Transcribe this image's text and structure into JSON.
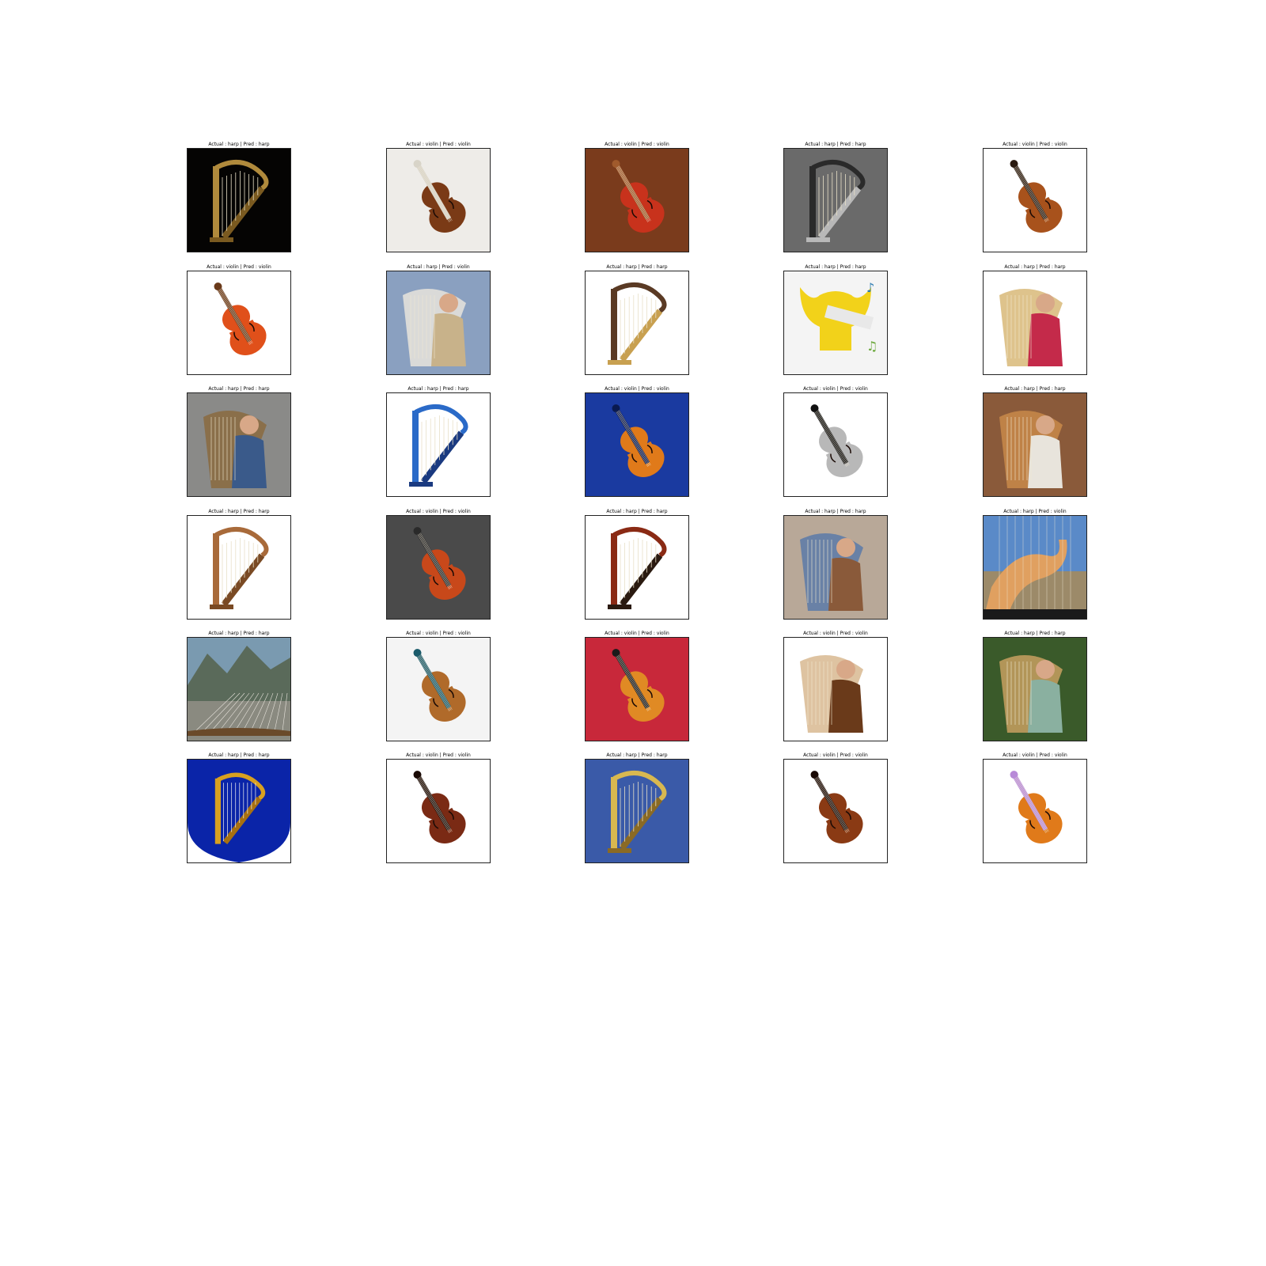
{
  "figure": {
    "rows": 6,
    "cols": 5,
    "tiles": [
      {
        "caption": "Actual : harp | Pred : harp",
        "subject": "harp",
        "scene": "two golden harps on black background",
        "bg": "#050403",
        "accent": "#b08a3c",
        "sub": "#7a5a20"
      },
      {
        "caption": "Actual : violin | Pred : violin",
        "subject": "violin",
        "scene": "violin lying on sheet music",
        "bg": "#eeece8",
        "accent": "#7a3a16",
        "sub": "#d8d4c8"
      },
      {
        "caption": "Actual : violin | Pred : violin",
        "subject": "violin",
        "scene": "hand holding red violin against wooden door",
        "bg": "#7a3b1c",
        "accent": "#c8321c",
        "sub": "#a05a2c"
      },
      {
        "caption": "Actual : harp | Pred : harp",
        "subject": "harp",
        "scene": "black and white photo of people with a harp",
        "bg": "#6a6a6a",
        "accent": "#2a2a2a",
        "sub": "#b8b8b8"
      },
      {
        "caption": "Actual : violin | Pred : violin",
        "subject": "violin",
        "scene": "violin top view and small violin below",
        "bg": "#ffffff",
        "accent": "#a8521c",
        "sub": "#2a1a10"
      },
      {
        "caption": "Actual : violin | Pred : violin",
        "subject": "violin",
        "scene": "orange violin with bow",
        "bg": "#ffffff",
        "accent": "#e0501a",
        "sub": "#6a3a1a"
      },
      {
        "caption": "Actual : harp | Pred : violin",
        "subject": "person",
        "scene": "woman playing harp",
        "bg": "#8aa0c0",
        "accent": "#c8b28a",
        "sub": "#e8e4dc"
      },
      {
        "caption": "Actual : harp | Pred : harp",
        "subject": "harp",
        "scene": "concert harp on white background",
        "bg": "#ffffff",
        "accent": "#5a3a24",
        "sub": "#c8a050"
      },
      {
        "caption": "Actual : harp | Pred : harp",
        "subject": "lyre",
        "scene": "yellow lyre cartoon with music notes",
        "bg": "#f4f4f4",
        "accent": "#f2d21a",
        "sub": "#2a7ab0"
      },
      {
        "caption": "Actual : harp | Pred : harp",
        "subject": "person",
        "scene": "illustration of lady in red gown with harp",
        "bg": "#ffffff",
        "accent": "#c42a4a",
        "sub": "#d8b878"
      },
      {
        "caption": "Actual : harp | Pred : harp",
        "subject": "person",
        "scene": "woman leaning over harp",
        "bg": "#8a8a88",
        "accent": "#3a5a8a",
        "sub": "#8a6a40"
      },
      {
        "caption": "Actual : harp | Pred : harp",
        "subject": "harp",
        "scene": "blue harp on white background",
        "bg": "#ffffff",
        "accent": "#2a6ac8",
        "sub": "#1a3a80"
      },
      {
        "caption": "Actual : violin | Pred : violin",
        "subject": "violin",
        "scene": "violin in blue velvet case",
        "bg": "#1a3aa0",
        "accent": "#e07a1a",
        "sub": "#0a1a50"
      },
      {
        "caption": "Actual : violin | Pred : violin",
        "subject": "violin",
        "scene": "grey violin silhouette with black fingerboard",
        "bg": "#ffffff",
        "accent": "#b8b8b8",
        "sub": "#111111"
      },
      {
        "caption": "Actual : harp | Pred : harp",
        "subject": "person",
        "scene": "man in hat playing harp on street",
        "bg": "#8a5a3a",
        "accent": "#e8e4dc",
        "sub": "#c88a4a"
      },
      {
        "caption": "Actual : harp | Pred : harp",
        "subject": "harp",
        "scene": "small wooden harp on white background",
        "bg": "#ffffff",
        "accent": "#a86a3a",
        "sub": "#7a4a24"
      },
      {
        "caption": "Actual : violin | Pred : violin",
        "subject": "violin",
        "scene": "violin in a room",
        "bg": "#4a4a4a",
        "accent": "#c8481a",
        "sub": "#2a2a2a"
      },
      {
        "caption": "Actual : harp | Pred : harp",
        "subject": "harp",
        "scene": "red-brown harp on white background",
        "bg": "#ffffff",
        "accent": "#8a2a14",
        "sub": "#2a1a10"
      },
      {
        "caption": "Actual : harp | Pred : harp",
        "subject": "person",
        "scene": "woman with tattoos playing harp",
        "bg": "#b8a898",
        "accent": "#8a5a3a",
        "sub": "#5a7aa8"
      },
      {
        "caption": "Actual : harp | Pred : violin",
        "subject": "hand",
        "scene": "close up of hand on harp strings",
        "bg": "#5a8ac8",
        "accent": "#e0a060",
        "sub": "#c88a2a"
      },
      {
        "caption": "Actual : harp | Pred : harp",
        "subject": "landscape",
        "scene": "mountain landscape with harp strings",
        "bg": "#7a9ab0",
        "accent": "#5a6a5a",
        "sub": "#8a8a80"
      },
      {
        "caption": "Actual : violin | Pred : violin",
        "subject": "violin",
        "scene": "close up of violin body and bridge",
        "bg": "#f4f4f4",
        "accent": "#b06a2a",
        "sub": "#1a5a6a"
      },
      {
        "caption": "Actual : violin | Pred : violin",
        "subject": "violin",
        "scene": "violin in case on red background",
        "bg": "#c8283a",
        "accent": "#e08a24",
        "sub": "#1a1a1a"
      },
      {
        "caption": "Actual : violin | Pred : violin",
        "subject": "person",
        "scene": "girl playing violin",
        "bg": "#ffffff",
        "accent": "#6a3a1a",
        "sub": "#d8b890"
      },
      {
        "caption": "Actual : harp | Pred : harp",
        "subject": "person",
        "scene": "woman in green dress in forest with harp",
        "bg": "#3a5a2a",
        "accent": "#8ab0a0",
        "sub": "#c8a060"
      },
      {
        "caption": "Actual : harp | Pred : harp",
        "subject": "emblem",
        "scene": "golden harp emblem on blue shield",
        "bg": "#ffffff",
        "accent": "#0a24a8",
        "sub": "#d8a020"
      },
      {
        "caption": "Actual : violin | Pred : violin",
        "subject": "violin",
        "scene": "violin on white background diagonal",
        "bg": "#ffffff",
        "accent": "#7a2a14",
        "sub": "#1a0a05"
      },
      {
        "caption": "Actual : harp | Pred : harp",
        "subject": "harp",
        "scene": "golden harp close up",
        "bg": "#3a5aa8",
        "accent": "#d8b850",
        "sub": "#8a6a24"
      },
      {
        "caption": "Actual : violin | Pred : violin",
        "subject": "violin",
        "scene": "violin upright on white background",
        "bg": "#ffffff",
        "accent": "#8a3a14",
        "sub": "#1a0a05"
      },
      {
        "caption": "Actual : violin | Pred : violin",
        "subject": "violin",
        "scene": "violin with purple sleeve arm",
        "bg": "#ffffff",
        "accent": "#e07a1a",
        "sub": "#b88ad8"
      }
    ]
  }
}
